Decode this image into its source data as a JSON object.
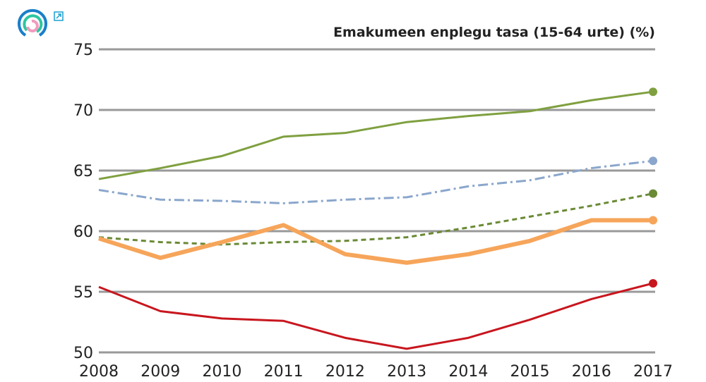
{
  "chart_data": {
    "type": "line",
    "title": "Emakumeen enplegu tasa (15-64 urte) (%)",
    "xlabel": "",
    "ylabel": "",
    "x": [
      2008,
      2009,
      2010,
      2011,
      2012,
      2013,
      2014,
      2015,
      2016,
      2017
    ],
    "ylim": [
      50,
      75
    ],
    "yticks": [
      50,
      55,
      60,
      65,
      70,
      75
    ],
    "grid": true,
    "series": [
      {
        "color": "#7fa040",
        "style": "solid",
        "width": 3,
        "values": [
          64.3,
          65.2,
          66.2,
          67.8,
          68.1,
          69.0,
          69.5,
          69.9,
          70.8,
          71.5
        ]
      },
      {
        "color": "#8aa6cc",
        "style": "dashdot",
        "width": 3,
        "values": [
          63.4,
          62.6,
          62.5,
          62.3,
          62.6,
          62.8,
          63.7,
          64.2,
          65.2,
          65.8
        ]
      },
      {
        "color": "#6a8a35",
        "style": "dashed",
        "width": 3,
        "values": [
          59.5,
          59.1,
          58.9,
          59.1,
          59.2,
          59.5,
          60.3,
          61.2,
          62.1,
          63.1
        ]
      },
      {
        "color": "#f6a55a",
        "style": "solid",
        "width": 6,
        "values": [
          59.4,
          57.8,
          59.1,
          60.5,
          58.1,
          57.4,
          58.1,
          59.2,
          60.9,
          60.9
        ]
      },
      {
        "color": "#c8161e",
        "style": "solid",
        "width": 3,
        "values": [
          55.4,
          53.4,
          52.8,
          52.6,
          51.2,
          50.3,
          51.2,
          52.7,
          54.4,
          55.7
        ]
      }
    ]
  },
  "icons": {
    "logo": "eustat-rings-logo",
    "external": "external-link-icon"
  }
}
